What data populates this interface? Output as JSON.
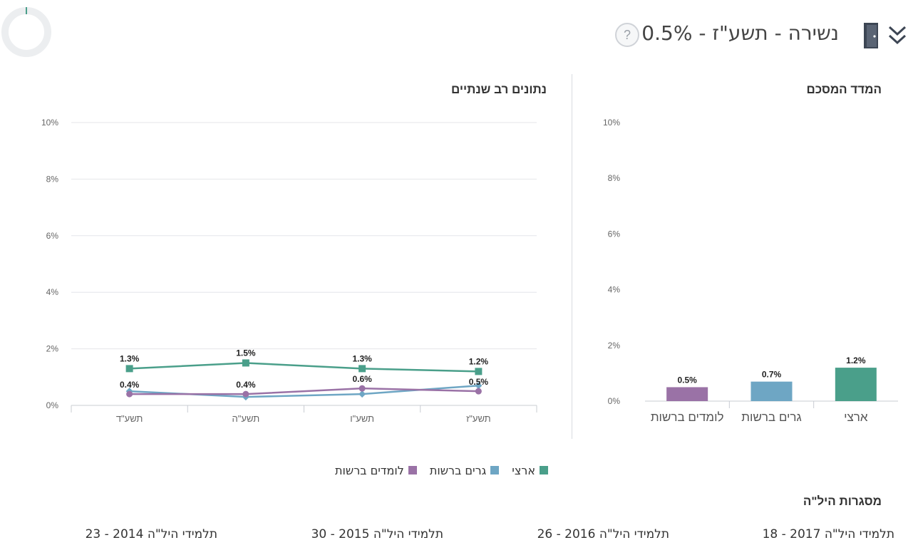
{
  "header": {
    "title": "נשירה - תשע\"ז - 0.5%",
    "help_label": "?"
  },
  "icons": {
    "door": "door-exit-icon",
    "chevrons": "double-chevron-down-icon",
    "help": "question-circle-icon"
  },
  "colors": {
    "national": "#4a9f8a",
    "residents": "#6ea6c4",
    "students": "#9a72a6"
  },
  "sections": {
    "summary_title": "המדד המסכם",
    "multiyear_title": "נתונים רב שנתיים",
    "frameworks_title": "מסגרות היל\"ה"
  },
  "legend": [
    {
      "label": "ארצי",
      "color": "#4a9f8a"
    },
    {
      "label": "גרים ברשות",
      "color": "#6ea6c4"
    },
    {
      "label": "לומדים ברשות",
      "color": "#9a72a6"
    }
  ],
  "footer": [
    "תלמידי היל\"ה 2017 - 18",
    "תלמידי היל\"ה 2016 - 26",
    "תלמידי היל\"ה 2015 - 30",
    "תלמידי היל\"ה 2014 - 23"
  ],
  "chart_data": [
    {
      "type": "bar",
      "title": "המדד המסכם",
      "categories": [
        "ארצי",
        "גרים ברשות",
        "לומדים ברשות"
      ],
      "values": [
        1.2,
        0.7,
        0.5
      ],
      "value_labels": [
        "1.2%",
        "0.7%",
        "0.5%"
      ],
      "colors": [
        "#4a9f8a",
        "#6ea6c4",
        "#9a72a6"
      ],
      "ylim": [
        0,
        10
      ],
      "yticks": [
        "0%",
        "2%",
        "4%",
        "6%",
        "8%",
        "10%"
      ],
      "grid": false
    },
    {
      "type": "line",
      "title": "נתונים רב שנתיים",
      "categories": [
        "תשע\"ז",
        "תשע\"ו",
        "תשע\"ה",
        "תשע\"ד"
      ],
      "series": [
        {
          "name": "ארצי",
          "color": "#4a9f8a",
          "marker": "square",
          "values": [
            1.2,
            1.3,
            1.5,
            1.3
          ],
          "labels": [
            "1.2%",
            "1.3%",
            "1.5%",
            "1.3%"
          ]
        },
        {
          "name": "גרים ברשות",
          "color": "#6ea6c4",
          "marker": "diamond",
          "values": [
            0.7,
            0.4,
            0.3,
            0.5
          ],
          "labels": [
            "",
            "",
            "",
            ""
          ]
        },
        {
          "name": "לומדים ברשות",
          "color": "#9a72a6",
          "marker": "circle",
          "values": [
            0.5,
            0.6,
            0.4,
            0.4
          ],
          "labels": [
            "0.5%",
            "0.6%",
            "0.4%",
            "0.4%"
          ]
        }
      ],
      "ylim": [
        0,
        10
      ],
      "yticks": [
        "0%",
        "2%",
        "4%",
        "6%",
        "8%",
        "10%"
      ],
      "grid": true,
      "legend": "bottom"
    }
  ]
}
